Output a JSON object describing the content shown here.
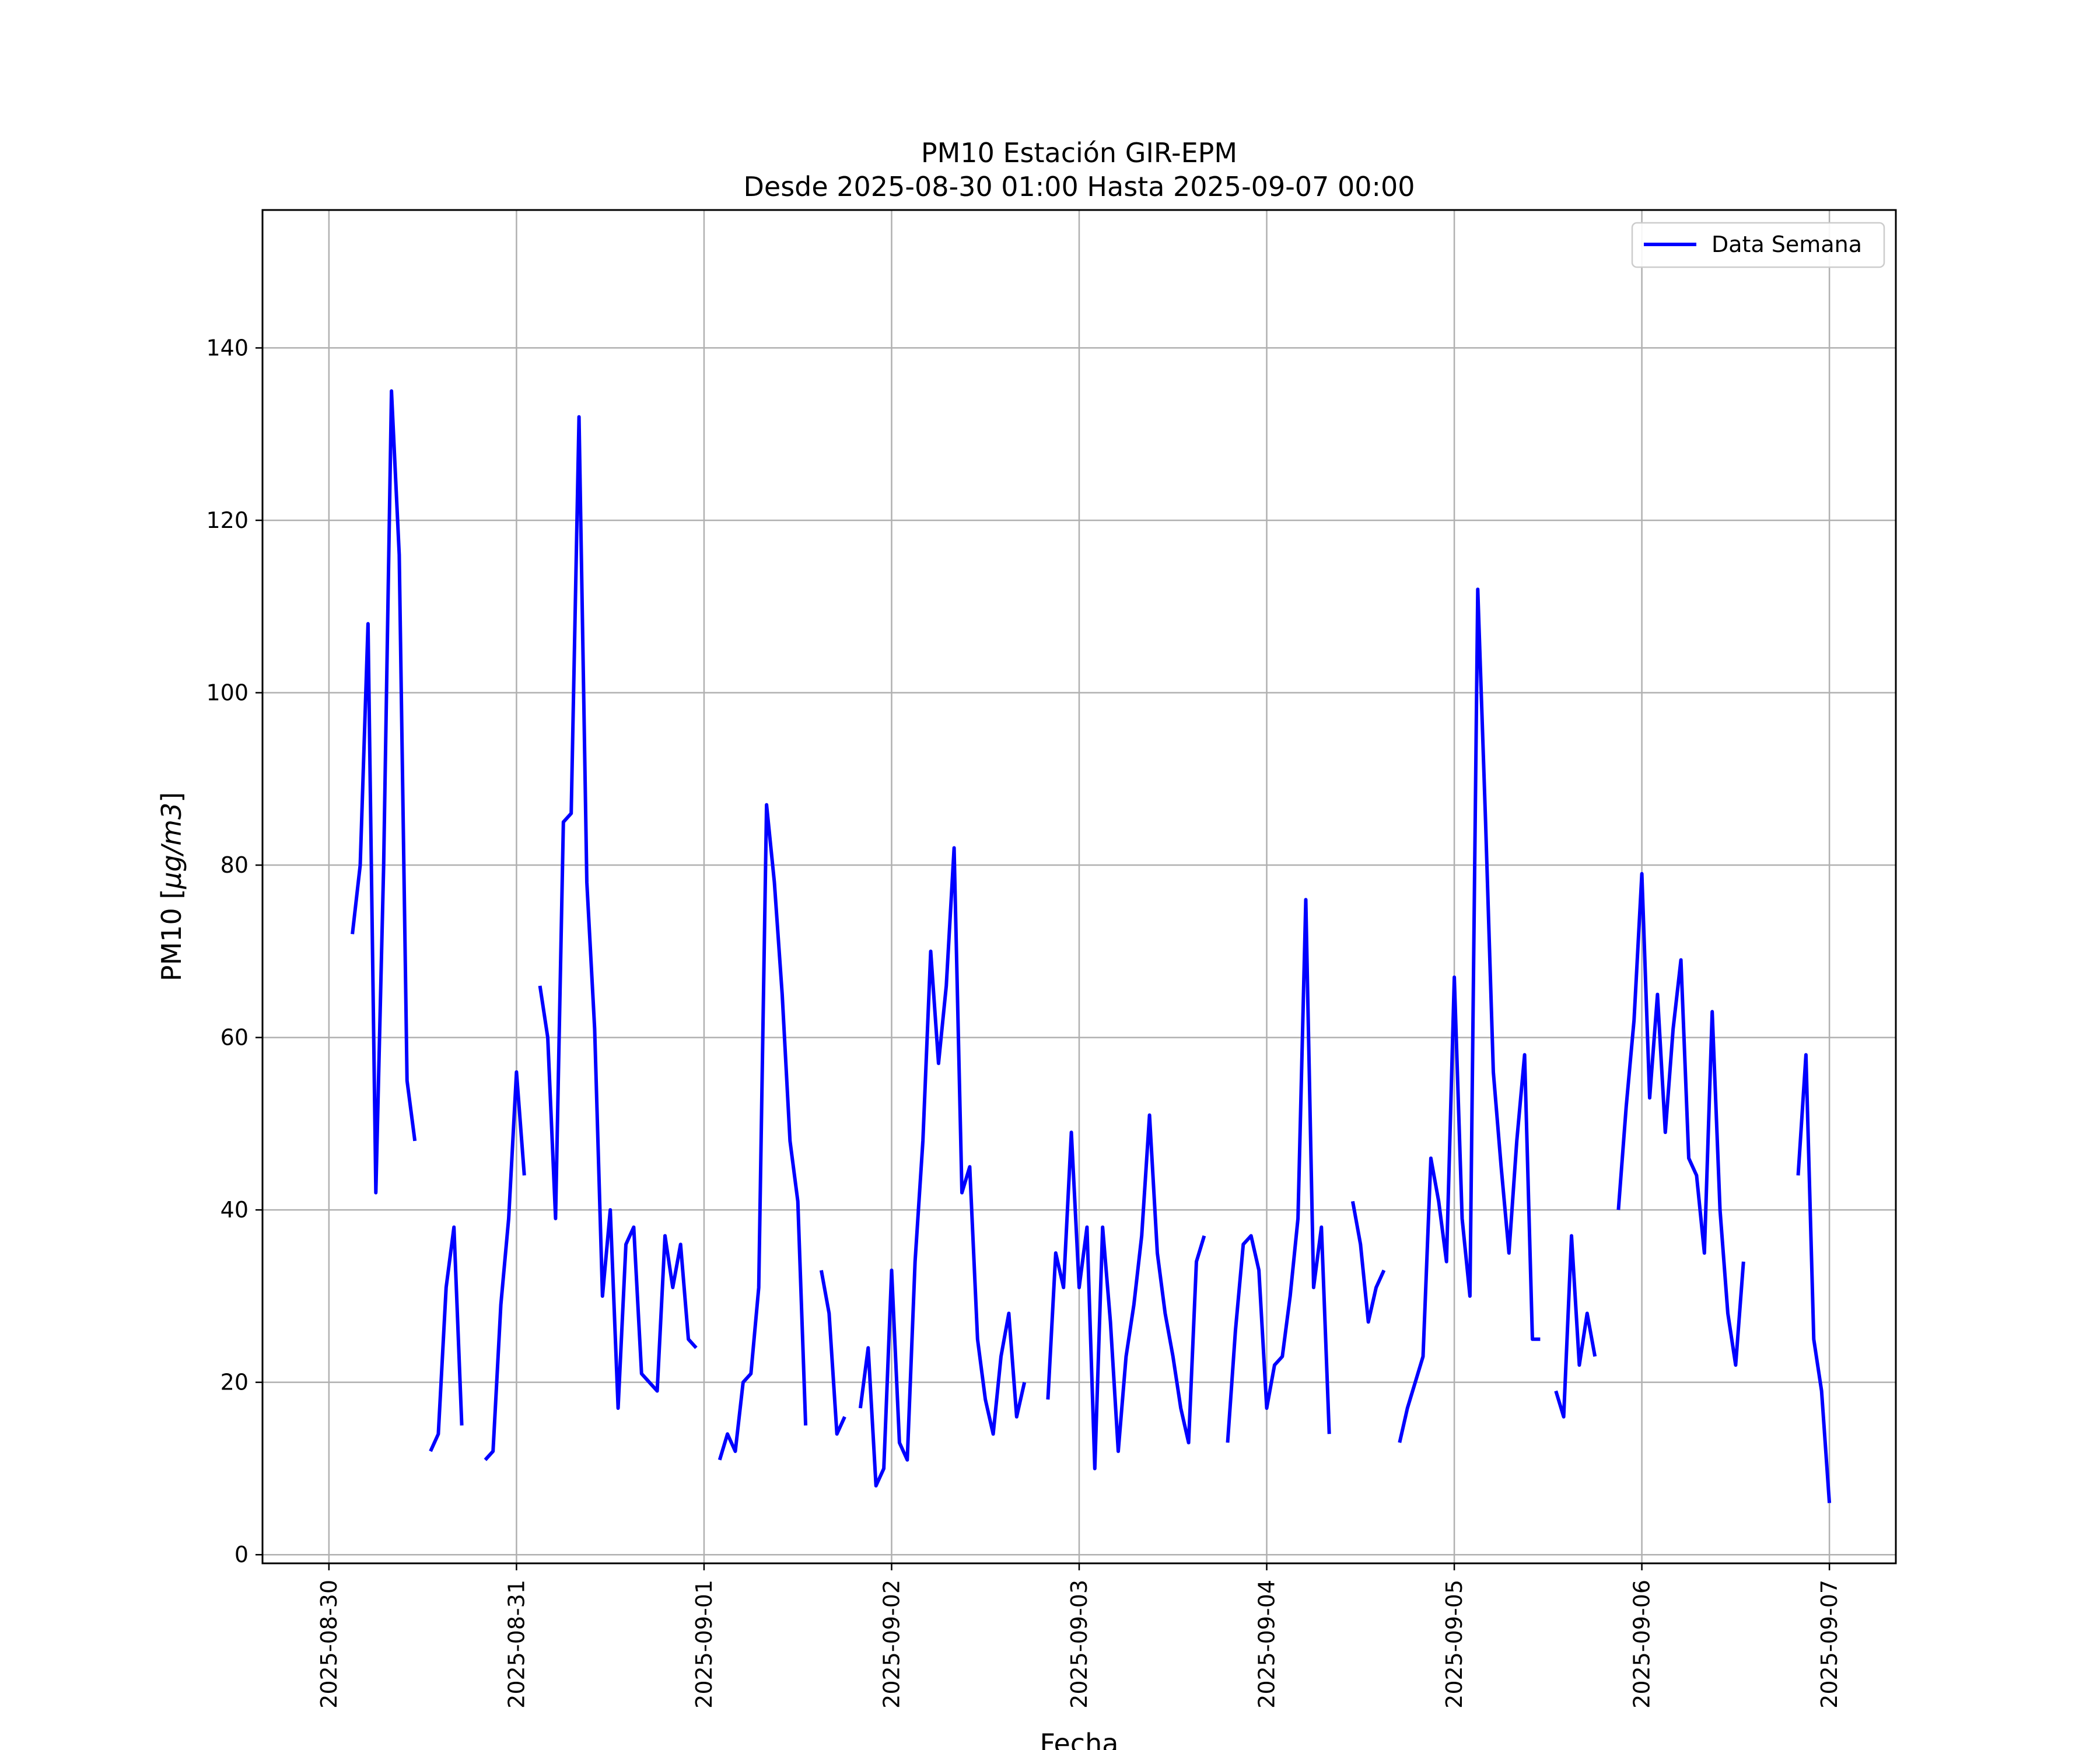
{
  "chart_data": {
    "type": "line",
    "title": "PM10 Estación GIR-EPM",
    "subtitle": "Desde 2025-08-30 01:00 Hasta 2025-09-07 00:00",
    "xlabel": "Fecha",
    "ylabel_prefix": "PM10 [",
    "ylabel_unit": "μg/m3",
    "ylabel_suffix": "]",
    "x_ticks": [
      "2025-08-30",
      "2025-08-31",
      "2025-09-01",
      "2025-09-02",
      "2025-09-03",
      "2025-09-04",
      "2025-09-05",
      "2025-09-06",
      "2025-09-07"
    ],
    "y_ticks": [
      0,
      20,
      40,
      60,
      80,
      100,
      120,
      140
    ],
    "xlim": [
      "2025-08-29 15:30",
      "2025-09-07 08:30"
    ],
    "ylim": [
      -1,
      156
    ],
    "grid": true,
    "legend_position": "top-right",
    "series_color": "#0000ff",
    "series": [
      {
        "name": "Data Semana",
        "segments": [
          [
            [
              "2025-08-30 03:00",
              72
            ],
            [
              "2025-08-30 04:00",
              80
            ],
            [
              "2025-08-30 05:00",
              108
            ],
            [
              "2025-08-30 06:00",
              42
            ],
            [
              "2025-08-30 07:00",
              80
            ],
            [
              "2025-08-30 08:00",
              135
            ],
            [
              "2025-08-30 09:00",
              116
            ],
            [
              "2025-08-30 10:00",
              55
            ],
            [
              "2025-08-30 11:00",
              48
            ]
          ],
          [
            [
              "2025-08-30 13:00",
              12
            ],
            [
              "2025-08-30 14:00",
              14
            ],
            [
              "2025-08-30 15:00",
              31
            ],
            [
              "2025-08-30 16:00",
              38
            ],
            [
              "2025-08-30 17:00",
              15
            ]
          ],
          [
            [
              "2025-08-30 20:00",
              11
            ],
            [
              "2025-08-30 21:00",
              12
            ],
            [
              "2025-08-30 22:00",
              29
            ],
            [
              "2025-08-30 23:00",
              39
            ],
            [
              "2025-08-31 00:00",
              56
            ],
            [
              "2025-08-31 01:00",
              44
            ]
          ],
          [
            [
              "2025-08-31 03:00",
              66
            ],
            [
              "2025-08-31 04:00",
              60
            ],
            [
              "2025-08-31 05:00",
              39
            ],
            [
              "2025-08-31 06:00",
              85
            ],
            [
              "2025-08-31 07:00",
              86
            ],
            [
              "2025-08-31 08:00",
              132
            ],
            [
              "2025-08-31 09:00",
              78
            ],
            [
              "2025-08-31 10:00",
              61
            ],
            [
              "2025-08-31 11:00",
              30
            ],
            [
              "2025-08-31 12:00",
              40
            ],
            [
              "2025-08-31 13:00",
              17
            ],
            [
              "2025-08-31 14:00",
              36
            ],
            [
              "2025-08-31 15:00",
              38
            ],
            [
              "2025-08-31 16:00",
              21
            ],
            [
              "2025-08-31 17:00",
              20
            ],
            [
              "2025-08-31 18:00",
              19
            ],
            [
              "2025-08-31 19:00",
              37
            ],
            [
              "2025-08-31 20:00",
              31
            ],
            [
              "2025-08-31 21:00",
              36
            ],
            [
              "2025-08-31 22:00",
              25
            ],
            [
              "2025-08-31 23:00",
              24
            ]
          ],
          [
            [
              "2025-09-01 02:00",
              11
            ],
            [
              "2025-09-01 03:00",
              14
            ],
            [
              "2025-09-01 04:00",
              12
            ],
            [
              "2025-09-01 05:00",
              20
            ],
            [
              "2025-09-01 06:00",
              21
            ],
            [
              "2025-09-01 07:00",
              31
            ],
            [
              "2025-09-01 08:00",
              87
            ],
            [
              "2025-09-01 09:00",
              78
            ],
            [
              "2025-09-01 10:00",
              65
            ],
            [
              "2025-09-01 11:00",
              48
            ],
            [
              "2025-09-01 12:00",
              41
            ],
            [
              "2025-09-01 13:00",
              15
            ]
          ],
          [
            [
              "2025-09-01 15:00",
              33
            ],
            [
              "2025-09-01 16:00",
              28
            ],
            [
              "2025-09-01 17:00",
              14
            ],
            [
              "2025-09-01 18:00",
              16
            ]
          ],
          [
            [
              "2025-09-01 20:00",
              17
            ],
            [
              "2025-09-01 21:00",
              24
            ],
            [
              "2025-09-01 22:00",
              8
            ],
            [
              "2025-09-01 23:00",
              10
            ],
            [
              "2025-09-02 00:00",
              33
            ],
            [
              "2025-09-02 01:00",
              13
            ],
            [
              "2025-09-02 02:00",
              11
            ],
            [
              "2025-09-02 03:00",
              34
            ],
            [
              "2025-09-02 04:00",
              48
            ],
            [
              "2025-09-02 05:00",
              70
            ],
            [
              "2025-09-02 06:00",
              57
            ],
            [
              "2025-09-02 07:00",
              66
            ],
            [
              "2025-09-02 08:00",
              82
            ],
            [
              "2025-09-02 09:00",
              42
            ],
            [
              "2025-09-02 10:00",
              45
            ],
            [
              "2025-09-02 11:00",
              25
            ],
            [
              "2025-09-02 12:00",
              18
            ],
            [
              "2025-09-02 13:00",
              14
            ],
            [
              "2025-09-02 14:00",
              23
            ],
            [
              "2025-09-02 15:00",
              28
            ],
            [
              "2025-09-02 16:00",
              16
            ],
            [
              "2025-09-02 17:00",
              20
            ]
          ],
          [
            [
              "2025-09-02 20:00",
              18
            ],
            [
              "2025-09-02 21:00",
              35
            ],
            [
              "2025-09-02 22:00",
              31
            ],
            [
              "2025-09-02 23:00",
              49
            ],
            [
              "2025-09-03 00:00",
              31
            ],
            [
              "2025-09-03 01:00",
              38
            ],
            [
              "2025-09-03 02:00",
              10
            ],
            [
              "2025-09-03 03:00",
              38
            ],
            [
              "2025-09-03 04:00",
              27
            ],
            [
              "2025-09-03 05:00",
              12
            ],
            [
              "2025-09-03 06:00",
              23
            ],
            [
              "2025-09-03 07:00",
              29
            ],
            [
              "2025-09-03 08:00",
              37
            ],
            [
              "2025-09-03 09:00",
              51
            ],
            [
              "2025-09-03 10:00",
              35
            ],
            [
              "2025-09-03 11:00",
              28
            ],
            [
              "2025-09-03 12:00",
              23
            ],
            [
              "2025-09-03 13:00",
              17
            ],
            [
              "2025-09-03 14:00",
              13
            ],
            [
              "2025-09-03 15:00",
              34
            ],
            [
              "2025-09-03 16:00",
              37
            ]
          ],
          [
            [
              "2025-09-03 19:00",
              13
            ],
            [
              "2025-09-03 20:00",
              26
            ],
            [
              "2025-09-03 21:00",
              36
            ],
            [
              "2025-09-03 22:00",
              37
            ],
            [
              "2025-09-03 23:00",
              33
            ],
            [
              "2025-09-04 00:00",
              17
            ],
            [
              "2025-09-04 01:00",
              22
            ],
            [
              "2025-09-04 02:00",
              23
            ],
            [
              "2025-09-04 03:00",
              30
            ],
            [
              "2025-09-04 04:00",
              39
            ],
            [
              "2025-09-04 05:00",
              76
            ],
            [
              "2025-09-04 06:00",
              31
            ],
            [
              "2025-09-04 07:00",
              38
            ],
            [
              "2025-09-04 08:00",
              14
            ]
          ],
          [
            [
              "2025-09-04 11:00",
              41
            ],
            [
              "2025-09-04 12:00",
              36
            ],
            [
              "2025-09-04 13:00",
              27
            ],
            [
              "2025-09-04 14:00",
              31
            ],
            [
              "2025-09-04 15:00",
              33
            ]
          ],
          [
            [
              "2025-09-04 17:00",
              13
            ],
            [
              "2025-09-04 18:00",
              17
            ],
            [
              "2025-09-04 19:00",
              20
            ],
            [
              "2025-09-04 20:00",
              23
            ],
            [
              "2025-09-04 21:00",
              46
            ],
            [
              "2025-09-04 22:00",
              41
            ],
            [
              "2025-09-04 23:00",
              34
            ],
            [
              "2025-09-05 00:00",
              67
            ],
            [
              "2025-09-05 01:00",
              39
            ],
            [
              "2025-09-05 02:00",
              30
            ],
            [
              "2025-09-05 03:00",
              112
            ],
            [
              "2025-09-05 04:00",
              85
            ],
            [
              "2025-09-05 05:00",
              56
            ],
            [
              "2025-09-05 06:00",
              45
            ],
            [
              "2025-09-05 07:00",
              35
            ],
            [
              "2025-09-05 08:00",
              48
            ],
            [
              "2025-09-05 09:00",
              58
            ],
            [
              "2025-09-05 10:00",
              25
            ],
            [
              "2025-09-05 11:00",
              25
            ]
          ],
          [
            [
              "2025-09-05 13:00",
              19
            ],
            [
              "2025-09-05 14:00",
              16
            ],
            [
              "2025-09-05 15:00",
              37
            ],
            [
              "2025-09-05 16:00",
              22
            ],
            [
              "2025-09-05 17:00",
              28
            ],
            [
              "2025-09-05 18:00",
              23
            ]
          ],
          [
            [
              "2025-09-05 21:00",
              40
            ],
            [
              "2025-09-05 22:00",
              52
            ],
            [
              "2025-09-05 23:00",
              62
            ],
            [
              "2025-09-06 00:00",
              79
            ],
            [
              "2025-09-06 01:00",
              53
            ],
            [
              "2025-09-06 02:00",
              65
            ],
            [
              "2025-09-06 03:00",
              49
            ],
            [
              "2025-09-06 04:00",
              61
            ],
            [
              "2025-09-06 05:00",
              69
            ],
            [
              "2025-09-06 06:00",
              46
            ],
            [
              "2025-09-06 07:00",
              44
            ],
            [
              "2025-09-06 08:00",
              35
            ],
            [
              "2025-09-06 09:00",
              63
            ],
            [
              "2025-09-06 10:00",
              40
            ],
            [
              "2025-09-06 11:00",
              28
            ],
            [
              "2025-09-06 12:00",
              22
            ],
            [
              "2025-09-06 13:00",
              34
            ]
          ],
          [
            [
              "2025-09-06 20:00",
              44
            ],
            [
              "2025-09-06 21:00",
              58
            ],
            [
              "2025-09-06 22:00",
              25
            ],
            [
              "2025-09-06 23:00",
              19
            ],
            [
              "2025-09-07 00:00",
              6
            ]
          ]
        ]
      }
    ]
  }
}
